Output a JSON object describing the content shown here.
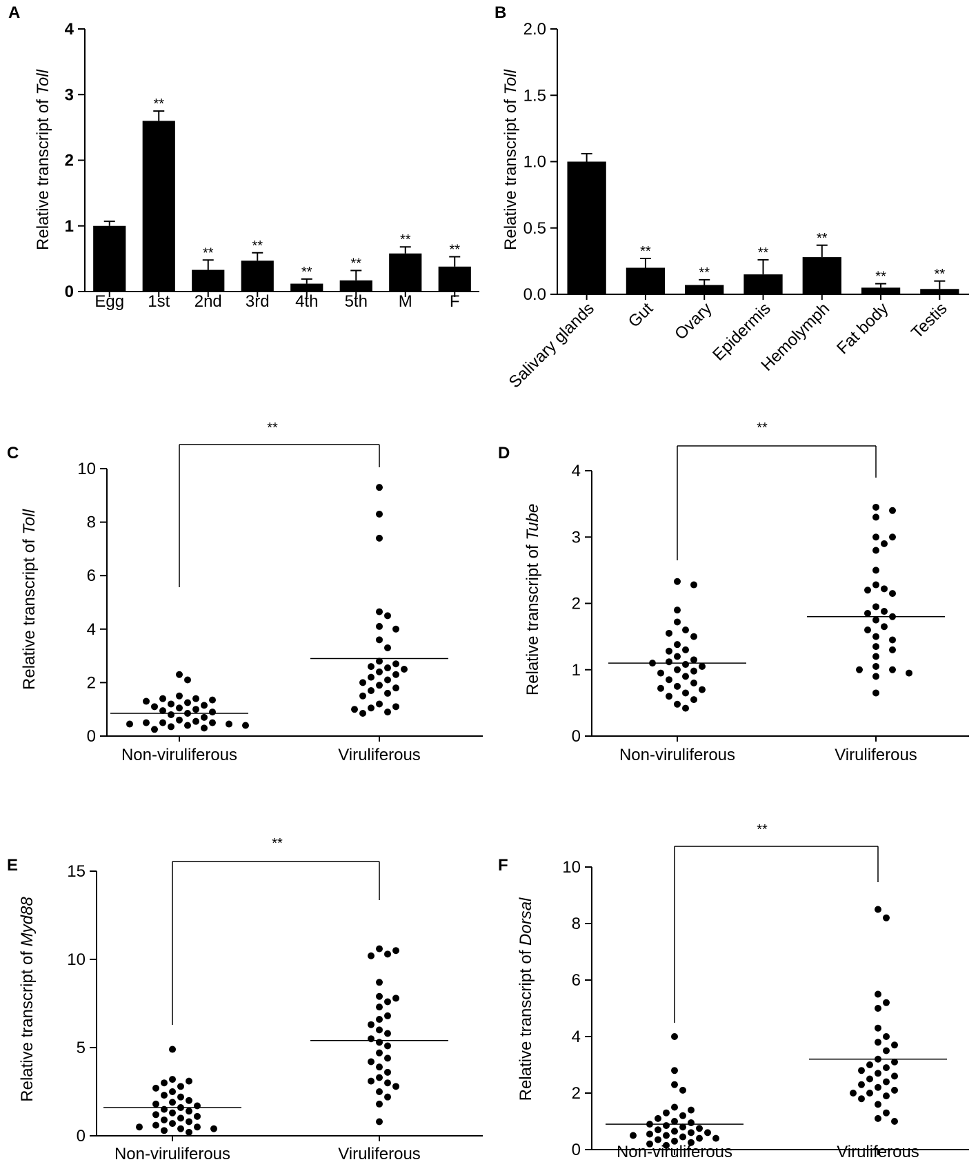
{
  "chart_data": [
    {
      "panel": "A",
      "type": "bar",
      "ylabel_prefix": "Relative transcript of ",
      "ylabel_gene": "Toll",
      "categories": [
        "Egg",
        "1st",
        "2nd",
        "3rd",
        "4th",
        "5th",
        "M",
        "F"
      ],
      "values": [
        1.0,
        2.6,
        0.33,
        0.47,
        0.12,
        0.17,
        0.58,
        0.38
      ],
      "errors": [
        0.07,
        0.15,
        0.15,
        0.12,
        0.07,
        0.15,
        0.1,
        0.15
      ],
      "significance": [
        "",
        "**",
        "**",
        "**",
        "**",
        "**",
        "**",
        "**"
      ],
      "ylim": [
        0,
        4
      ],
      "yticks": [
        "0",
        "1",
        "2",
        "3",
        "4"
      ]
    },
    {
      "panel": "B",
      "type": "bar",
      "ylabel_prefix": "Relative transcript of ",
      "ylabel_gene": "Toll",
      "categories": [
        "Salivary glands",
        "Gut",
        "Ovary",
        "Epidermis",
        "Hemolymph",
        "Fat body",
        "Testis"
      ],
      "values": [
        1.0,
        0.2,
        0.07,
        0.15,
        0.28,
        0.05,
        0.04
      ],
      "errors": [
        0.06,
        0.07,
        0.04,
        0.11,
        0.09,
        0.03,
        0.06
      ],
      "significance": [
        "",
        "**",
        "**",
        "**",
        "**",
        "**",
        "**"
      ],
      "ylim": [
        0,
        2.0
      ],
      "yticks": [
        "0.0",
        "0.5",
        "1.0",
        "1.5",
        "2.0"
      ]
    },
    {
      "panel": "C",
      "type": "scatter",
      "ylabel_prefix": "Relative transcript of ",
      "ylabel_gene": "Toll",
      "categories": [
        "Non-viruliferous",
        "Viruliferous"
      ],
      "significance": "**",
      "ylim": [
        0,
        10
      ],
      "yticks": [
        "0",
        "2",
        "4",
        "6",
        "8",
        "10"
      ],
      "groups": [
        {
          "name": "Non-viruliferous",
          "mean": 0.85,
          "values": [
            2.3,
            2.1,
            1.5,
            1.4,
            1.4,
            1.35,
            1.3,
            1.25,
            1.2,
            1.15,
            1.1,
            1.05,
            1.0,
            0.95,
            0.9,
            0.85,
            0.8,
            0.7,
            0.6,
            0.55,
            0.5,
            0.5,
            0.5,
            0.45,
            0.45,
            0.4,
            0.4,
            0.35,
            0.3,
            0.25
          ]
        },
        {
          "name": "Viruliferous",
          "mean": 2.9,
          "values": [
            9.3,
            8.3,
            7.4,
            4.65,
            4.5,
            4.1,
            4.0,
            3.6,
            3.3,
            2.8,
            2.7,
            2.6,
            2.55,
            2.5,
            2.4,
            2.3,
            2.2,
            2.1,
            2.0,
            1.9,
            1.8,
            1.7,
            1.6,
            1.5,
            1.2,
            1.1,
            1.05,
            1.0,
            0.9,
            0.85
          ]
        }
      ]
    },
    {
      "panel": "D",
      "type": "scatter",
      "ylabel_prefix": "Relative transcript of ",
      "ylabel_gene": "Tube",
      "categories": [
        "Non-viruliferous",
        "Viruliferous"
      ],
      "significance": "**",
      "ylim": [
        0,
        4
      ],
      "yticks": [
        "0",
        "1",
        "2",
        "3",
        "4"
      ],
      "groups": [
        {
          "name": "Non-viruliferous",
          "mean": 1.1,
          "values": [
            2.33,
            2.28,
            1.9,
            1.72,
            1.6,
            1.55,
            1.5,
            1.38,
            1.3,
            1.28,
            1.2,
            1.15,
            1.12,
            1.1,
            1.08,
            1.05,
            1.0,
            0.98,
            0.95,
            0.9,
            0.85,
            0.8,
            0.75,
            0.72,
            0.7,
            0.65,
            0.6,
            0.55,
            0.48,
            0.42
          ]
        },
        {
          "name": "Viruliferous",
          "mean": 1.8,
          "values": [
            3.45,
            3.4,
            3.3,
            3.0,
            3.0,
            2.9,
            2.8,
            2.5,
            2.28,
            2.22,
            2.2,
            2.15,
            1.95,
            1.88,
            1.85,
            1.8,
            1.75,
            1.65,
            1.6,
            1.5,
            1.45,
            1.35,
            1.3,
            1.2,
            1.05,
            1.0,
            1.0,
            0.95,
            0.9,
            0.65
          ]
        }
      ]
    },
    {
      "panel": "E",
      "type": "scatter",
      "ylabel_prefix": "Relative transcript of ",
      "ylabel_gene": "Myd88",
      "categories": [
        "Non-viruliferous",
        "Viruliferous"
      ],
      "significance": "**",
      "ylim": [
        0,
        15
      ],
      "yticks": [
        "0",
        "5",
        "10",
        "15"
      ],
      "groups": [
        {
          "name": "Non-viruliferous",
          "mean": 1.6,
          "values": [
            4.9,
            3.2,
            3.1,
            3.0,
            2.8,
            2.7,
            2.5,
            2.3,
            2.2,
            2.0,
            1.9,
            1.8,
            1.7,
            1.6,
            1.5,
            1.4,
            1.3,
            1.2,
            1.1,
            1.0,
            0.9,
            0.8,
            0.7,
            0.6,
            0.5,
            0.5,
            0.4,
            0.4,
            0.3,
            0.2
          ]
        },
        {
          "name": "Viruliferous",
          "mean": 5.4,
          "values": [
            10.6,
            10.5,
            10.3,
            10.2,
            8.7,
            7.9,
            7.8,
            7.6,
            7.3,
            6.8,
            6.6,
            6.3,
            6.0,
            5.8,
            5.5,
            5.3,
            5.1,
            4.7,
            4.4,
            4.2,
            3.9,
            3.6,
            3.3,
            3.1,
            3.0,
            2.8,
            2.5,
            2.2,
            1.8,
            0.8
          ]
        }
      ]
    },
    {
      "panel": "F",
      "type": "scatter",
      "ylabel_prefix": "Relative transcript of ",
      "ylabel_gene": "Dorsal",
      "categories": [
        "Non-viruliferous",
        "Viruliferous"
      ],
      "significance": "**",
      "ylim": [
        0,
        10
      ],
      "yticks": [
        "0",
        "2",
        "4",
        "6",
        "8",
        "10"
      ],
      "groups": [
        {
          "name": "Non-viruliferous",
          "mean": 0.9,
          "values": [
            4.0,
            2.8,
            2.3,
            2.1,
            1.5,
            1.4,
            1.3,
            1.2,
            1.1,
            1.0,
            0.95,
            0.9,
            0.85,
            0.8,
            0.75,
            0.7,
            0.65,
            0.6,
            0.6,
            0.55,
            0.5,
            0.5,
            0.45,
            0.4,
            0.4,
            0.35,
            0.3,
            0.25,
            0.2,
            0.15
          ]
        },
        {
          "name": "Viruliferous",
          "mean": 3.2,
          "values": [
            8.5,
            8.2,
            5.5,
            5.2,
            5.0,
            4.3,
            4.0,
            3.8,
            3.7,
            3.5,
            3.2,
            3.1,
            3.0,
            2.9,
            2.8,
            2.7,
            2.6,
            2.5,
            2.4,
            2.3,
            2.2,
            2.1,
            2.0,
            2.0,
            1.9,
            1.8,
            1.6,
            1.3,
            1.1,
            1.0
          ]
        }
      ]
    }
  ]
}
